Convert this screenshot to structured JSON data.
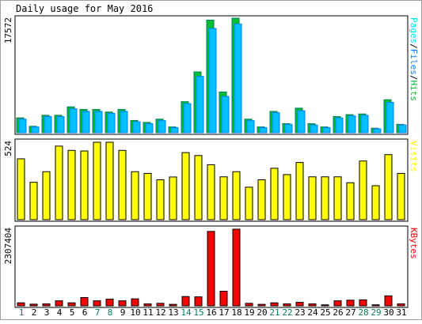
{
  "title": "Daily usage for May 2016",
  "colors": {
    "hits": "#00805c",
    "hits_fill": "#00c030",
    "files": "#0080ff",
    "files_fill": "#00c0ff",
    "pages": "#00e0ff",
    "visits": "#ffff00",
    "kbytes": "#ff0000",
    "weekday_label": "#000000",
    "weekend_label": "#00805c",
    "axis": "#000000"
  },
  "chart_data": [
    {
      "type": "bar",
      "name": "Hits / Files / Pages",
      "ylabel": "17572",
      "side_label": [
        "Pages",
        "/",
        "Files",
        "/",
        "Hits"
      ],
      "ymax": 17572,
      "categories": [
        "1",
        "2",
        "3",
        "4",
        "5",
        "6",
        "7",
        "8",
        "9",
        "10",
        "11",
        "12",
        "13",
        "14",
        "15",
        "16",
        "17",
        "18",
        "19",
        "20",
        "21",
        "22",
        "23",
        "24",
        "25",
        "26",
        "27",
        "28",
        "29",
        "30",
        "31"
      ],
      "series": [
        {
          "name": "Hits",
          "values": [
            2300,
            1000,
            2700,
            2700,
            4000,
            3600,
            3600,
            3200,
            3600,
            1900,
            1600,
            2100,
            900,
            4800,
            9400,
            17400,
            6300,
            17700,
            2100,
            900,
            3300,
            1400,
            3800,
            1400,
            900,
            2500,
            2800,
            2900,
            700,
            5100,
            1300
          ]
        },
        {
          "name": "Files",
          "values": [
            2100,
            900,
            2500,
            2500,
            3700,
            3300,
            3300,
            3000,
            3300,
            1700,
            1400,
            1900,
            800,
            4500,
            8700,
            16100,
            5600,
            16800,
            1900,
            800,
            3100,
            1300,
            3400,
            1200,
            800,
            2300,
            2600,
            2700,
            600,
            4700,
            1200
          ]
        }
      ]
    },
    {
      "type": "bar",
      "name": "Visits",
      "ylabel": "524",
      "side_label": [
        "Visits"
      ],
      "ymax": 524,
      "categories": [
        "1",
        "2",
        "3",
        "4",
        "5",
        "6",
        "7",
        "8",
        "9",
        "10",
        "11",
        "12",
        "13",
        "14",
        "15",
        "16",
        "17",
        "18",
        "19",
        "20",
        "21",
        "22",
        "23",
        "24",
        "25",
        "26",
        "27",
        "28",
        "29",
        "30",
        "31"
      ],
      "series": [
        {
          "name": "Visits",
          "values": [
            412,
            253,
            325,
            498,
            469,
            465,
            524,
            524,
            469,
            325,
            313,
            270,
            289,
            454,
            434,
            372,
            290,
            325,
            220,
            270,
            348,
            305,
            387,
            290,
            290,
            290,
            250,
            397,
            230,
            440,
            313
          ]
        }
      ]
    },
    {
      "type": "bar",
      "name": "KBytes",
      "ylabel": "2307404",
      "side_label": [
        "KBytes"
      ],
      "ymax": 2307404,
      "categories": [
        "1",
        "2",
        "3",
        "4",
        "5",
        "6",
        "7",
        "8",
        "9",
        "10",
        "11",
        "12",
        "13",
        "14",
        "15",
        "16",
        "17",
        "18",
        "19",
        "20",
        "21",
        "22",
        "23",
        "24",
        "25",
        "26",
        "27",
        "28",
        "29",
        "30",
        "31"
      ],
      "series": [
        {
          "name": "KBytes",
          "values": [
            90000,
            50000,
            60000,
            150000,
            90000,
            250000,
            150000,
            200000,
            150000,
            210000,
            60000,
            75000,
            45000,
            280000,
            270000,
            2240000,
            440000,
            2307404,
            75000,
            45000,
            90000,
            60000,
            105000,
            60000,
            30000,
            150000,
            170000,
            180000,
            30000,
            300000,
            60000
          ]
        }
      ]
    }
  ],
  "x_labels": [
    {
      "label": "1",
      "weekend": true
    },
    {
      "label": "2",
      "weekend": false
    },
    {
      "label": "3",
      "weekend": false
    },
    {
      "label": "4",
      "weekend": false
    },
    {
      "label": "5",
      "weekend": false
    },
    {
      "label": "6",
      "weekend": false
    },
    {
      "label": "7",
      "weekend": true
    },
    {
      "label": "8",
      "weekend": true
    },
    {
      "label": "9",
      "weekend": false
    },
    {
      "label": "10",
      "weekend": false
    },
    {
      "label": "11",
      "weekend": false
    },
    {
      "label": "12",
      "weekend": false
    },
    {
      "label": "13",
      "weekend": false
    },
    {
      "label": "14",
      "weekend": true
    },
    {
      "label": "15",
      "weekend": true
    },
    {
      "label": "16",
      "weekend": false
    },
    {
      "label": "17",
      "weekend": false
    },
    {
      "label": "18",
      "weekend": false
    },
    {
      "label": "19",
      "weekend": false
    },
    {
      "label": "20",
      "weekend": false
    },
    {
      "label": "21",
      "weekend": true
    },
    {
      "label": "22",
      "weekend": true
    },
    {
      "label": "23",
      "weekend": false
    },
    {
      "label": "24",
      "weekend": false
    },
    {
      "label": "25",
      "weekend": false
    },
    {
      "label": "26",
      "weekend": false
    },
    {
      "label": "27",
      "weekend": false
    },
    {
      "label": "28",
      "weekend": true
    },
    {
      "label": "29",
      "weekend": true
    },
    {
      "label": "30",
      "weekend": false
    },
    {
      "label": "31",
      "weekend": false
    }
  ]
}
